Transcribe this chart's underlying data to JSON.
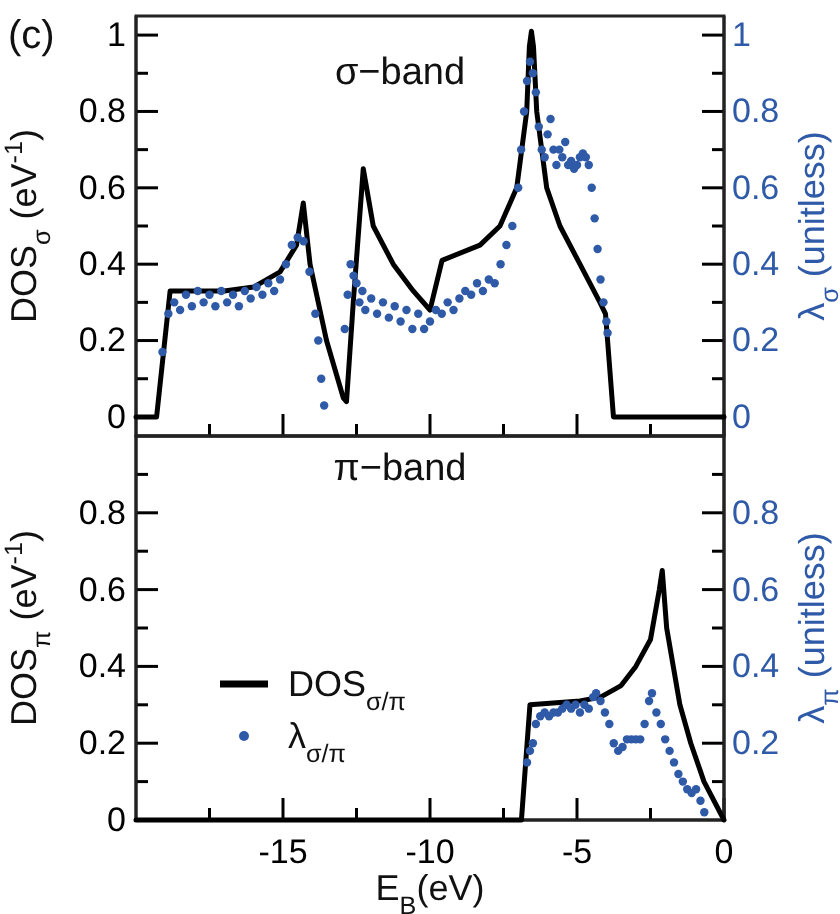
{
  "chart_data": [
    {
      "type": "line",
      "annotations": [
        "(c)",
        "σ−band"
      ],
      "ylabel": "DOS$_{σ}$ (eV$^{-1}$)",
      "y2label": "λ$_{σ}$ (unitless)",
      "xlim": [
        -20,
        0
      ],
      "xticks": [
        {
          "value": -17.5,
          "label": null
        },
        -15,
        {
          "value": -12.5,
          "label": null
        },
        -10,
        {
          "value": -7.5,
          "label": null
        },
        -5,
        {
          "value": -2.5,
          "label": null
        },
        0
      ],
      "ylim": [
        -0.05,
        1.05
      ],
      "yticks": [
        0,
        {
          "value": 0.1,
          "label": null
        },
        0.2,
        {
          "value": 0.3,
          "label": null
        },
        0.4,
        {
          "value": 0.5,
          "label": null
        },
        0.6,
        {
          "value": 0.7,
          "label": null
        },
        0.8,
        {
          "value": 0.9,
          "label": null
        },
        1
      ],
      "y2lim": [
        -0.05,
        1.05
      ],
      "y2ticks": [
        0,
        {
          "value": 0.1,
          "label": null
        },
        0.2,
        {
          "value": 0.3,
          "label": null
        },
        0.4,
        {
          "value": 0.5,
          "label": null
        },
        0.6,
        {
          "value": 0.7,
          "label": null
        },
        0.8,
        {
          "value": 0.9,
          "label": null
        },
        1
      ],
      "tick_labels": "y",
      "grid": false,
      "legend": false,
      "series": [
        {
          "type": "line",
          "color": "#000000",
          "line_style": "solid",
          "x": [
            -20,
            -19.3,
            -18.84,
            -17,
            -16,
            -15.1,
            -14.54,
            -14.31,
            -14.08,
            -13.52,
            -12.95,
            -12.84,
            -12.61,
            -12.27,
            -11.93,
            -11.25,
            -10.57,
            -10,
            -9.59,
            -8.3,
            -7.62,
            -7.05,
            -6.71,
            -6.62,
            -6.55,
            -6.48,
            -6.37,
            -6.03,
            -5.58,
            -4.9,
            -4.22,
            -4.03,
            -3.76,
            0
          ],
          "values": [
            0,
            0,
            0.33,
            0.33,
            0.34,
            0.38,
            0.45,
            0.56,
            0.4,
            0.2,
            0.05,
            0.04,
            0.3,
            0.65,
            0.5,
            0.4,
            0.33,
            0.28,
            0.41,
            0.45,
            0.5,
            0.6,
            0.8,
            0.97,
            1.01,
            0.97,
            0.8,
            0.6,
            0.5,
            0.4,
            0.3,
            0.27,
            0,
            0
          ]
        },
        {
          "type": "scatter",
          "color": "#2f5aa8",
          "marker": "circle",
          "axis": "y2",
          "x": [
            -19.1,
            -18.9,
            -18.7,
            -18.5,
            -18.3,
            -18.1,
            -17.9,
            -17.7,
            -17.5,
            -17.3,
            -17.1,
            -16.9,
            -16.7,
            -16.5,
            -16.3,
            -16.1,
            -15.9,
            -15.7,
            -15.5,
            -15.3,
            -15.1,
            -14.9,
            -14.7,
            -14.5,
            -14.3,
            -14.1,
            -13.9,
            -13.8,
            -13.7,
            -13.6,
            -12.9,
            -12.8,
            -12.7,
            -12.6,
            -12.5,
            -12.4,
            -12.3,
            -12.2,
            -12.0,
            -11.8,
            -11.6,
            -11.4,
            -11.2,
            -11.0,
            -10.8,
            -10.6,
            -10.4,
            -10.2,
            -10.0,
            -9.8,
            -9.6,
            -9.4,
            -9.2,
            -9.0,
            -8.8,
            -8.6,
            -8.4,
            -8.2,
            -8.0,
            -7.8,
            -7.6,
            -7.4,
            -7.2,
            -7.0,
            -6.9,
            -6.8,
            -6.7,
            -6.6,
            -6.5,
            -6.4,
            -6.3,
            -6.2,
            -6.1,
            -6.0,
            -5.9,
            -5.8,
            -5.7,
            -5.6,
            -5.5,
            -5.4,
            -5.3,
            -5.2,
            -5.1,
            -5.0,
            -4.9,
            -4.8,
            -4.7,
            -4.6,
            -4.5,
            -4.4,
            -4.3,
            -4.2,
            -4.1,
            -4.0,
            -3.96
          ],
          "values": [
            0.17,
            0.27,
            0.3,
            0.28,
            0.32,
            0.29,
            0.33,
            0.3,
            0.32,
            0.29,
            0.33,
            0.3,
            0.32,
            0.29,
            0.33,
            0.31,
            0.34,
            0.32,
            0.35,
            0.33,
            0.36,
            0.4,
            0.45,
            0.47,
            0.46,
            0.38,
            0.27,
            0.2,
            0.1,
            0.03,
            0.23,
            0.32,
            0.4,
            0.37,
            0.35,
            0.3,
            0.33,
            0.28,
            0.31,
            0.27,
            0.3,
            0.26,
            0.29,
            0.25,
            0.28,
            0.23,
            0.27,
            0.23,
            0.25,
            0.28,
            0.27,
            0.3,
            0.28,
            0.31,
            0.33,
            0.32,
            0.35,
            0.33,
            0.36,
            0.35,
            0.4,
            0.45,
            0.5,
            0.6,
            0.7,
            0.8,
            0.88,
            0.93,
            0.9,
            0.85,
            0.76,
            0.7,
            0.68,
            0.74,
            0.78,
            0.7,
            0.66,
            0.7,
            0.68,
            0.72,
            0.66,
            0.67,
            0.65,
            0.66,
            0.68,
            0.69,
            0.68,
            0.66,
            0.6,
            0.52,
            0.44,
            0.36,
            0.3,
            0.25,
            0.22
          ]
        }
      ]
    },
    {
      "type": "line",
      "annotations": [
        "π−band"
      ],
      "xlabel": "E$_{B}$(eV)",
      "ylabel": "DOS$_{π}$ (eV$^{-1}$)",
      "y2label": "λ$_{π}$ (unitless)",
      "xlim": [
        -20,
        0
      ],
      "xticks": [
        {
          "value": -17.5,
          "label": null
        },
        -15,
        {
          "value": -12.5,
          "label": null
        },
        -10,
        {
          "value": -7.5,
          "label": null
        },
        -5,
        {
          "value": -2.5,
          "label": null
        },
        0
      ],
      "ylim": [
        0,
        1
      ],
      "yticks": [
        0,
        {
          "value": 0.1,
          "label": null
        },
        0.2,
        {
          "value": 0.3,
          "label": null
        },
        0.4,
        {
          "value": 0.5,
          "label": null
        },
        0.6,
        {
          "value": 0.7,
          "label": null
        },
        0.8,
        {
          "value": 0.9,
          "label": null
        }
      ],
      "y2lim": [
        0,
        1
      ],
      "y2ticks": [
        {
          "value": 0.1,
          "label": null
        },
        0.2,
        {
          "value": 0.3,
          "label": null
        },
        0.4,
        {
          "value": 0.5,
          "label": null
        },
        0.6,
        {
          "value": 0.7,
          "label": null
        },
        0.8,
        {
          "value": 0.9,
          "label": null
        }
      ],
      "grid": false,
      "legend": "left",
      "series": [
        {
          "type": "line",
          "name": "DOS$_{σ/π}$",
          "color": "#000000",
          "line_style": "solid",
          "x": [
            -20,
            -6.89,
            -6.6,
            -4.9,
            -4.2,
            -3.5,
            -3.0,
            -2.5,
            -2.2,
            -2.1,
            -1.95,
            -1.5,
            -1.13,
            -0.68,
            0
          ],
          "values": [
            0,
            0,
            0.3,
            0.31,
            0.32,
            0.35,
            0.4,
            0.47,
            0.6,
            0.65,
            0.5,
            0.3,
            0.2,
            0.1,
            0
          ]
        },
        {
          "type": "scatter",
          "name": "λ$_{σ/π}$",
          "color": "#2f5aa8",
          "marker": "circle",
          "axis": "y2",
          "x": [
            -6.7,
            -6.6,
            -6.5,
            -6.4,
            -6.25,
            -6.1,
            -5.95,
            -5.8,
            -5.65,
            -5.5,
            -5.35,
            -5.2,
            -5.05,
            -4.9,
            -4.75,
            -4.6,
            -4.45,
            -4.35,
            -4.2,
            -4.05,
            -3.9,
            -3.75,
            -3.6,
            -3.45,
            -3.3,
            -3.15,
            -3.0,
            -2.85,
            -2.7,
            -2.55,
            -2.45,
            -2.3,
            -2.15,
            -2.0,
            -1.85,
            -1.7,
            -1.55,
            -1.4,
            -1.25,
            -1.1,
            -0.95,
            -0.8,
            -0.67
          ],
          "values": [
            0.15,
            0.18,
            0.2,
            0.25,
            0.27,
            0.28,
            0.27,
            0.28,
            0.28,
            0.29,
            0.3,
            0.29,
            0.3,
            0.28,
            0.3,
            0.29,
            0.32,
            0.33,
            0.31,
            0.28,
            0.25,
            0.2,
            0.18,
            0.19,
            0.21,
            0.21,
            0.21,
            0.21,
            0.25,
            0.31,
            0.33,
            0.28,
            0.25,
            0.21,
            0.18,
            0.15,
            0.12,
            0.1,
            0.08,
            0.07,
            0.08,
            0.05,
            0.02
          ]
        }
      ]
    }
  ]
}
